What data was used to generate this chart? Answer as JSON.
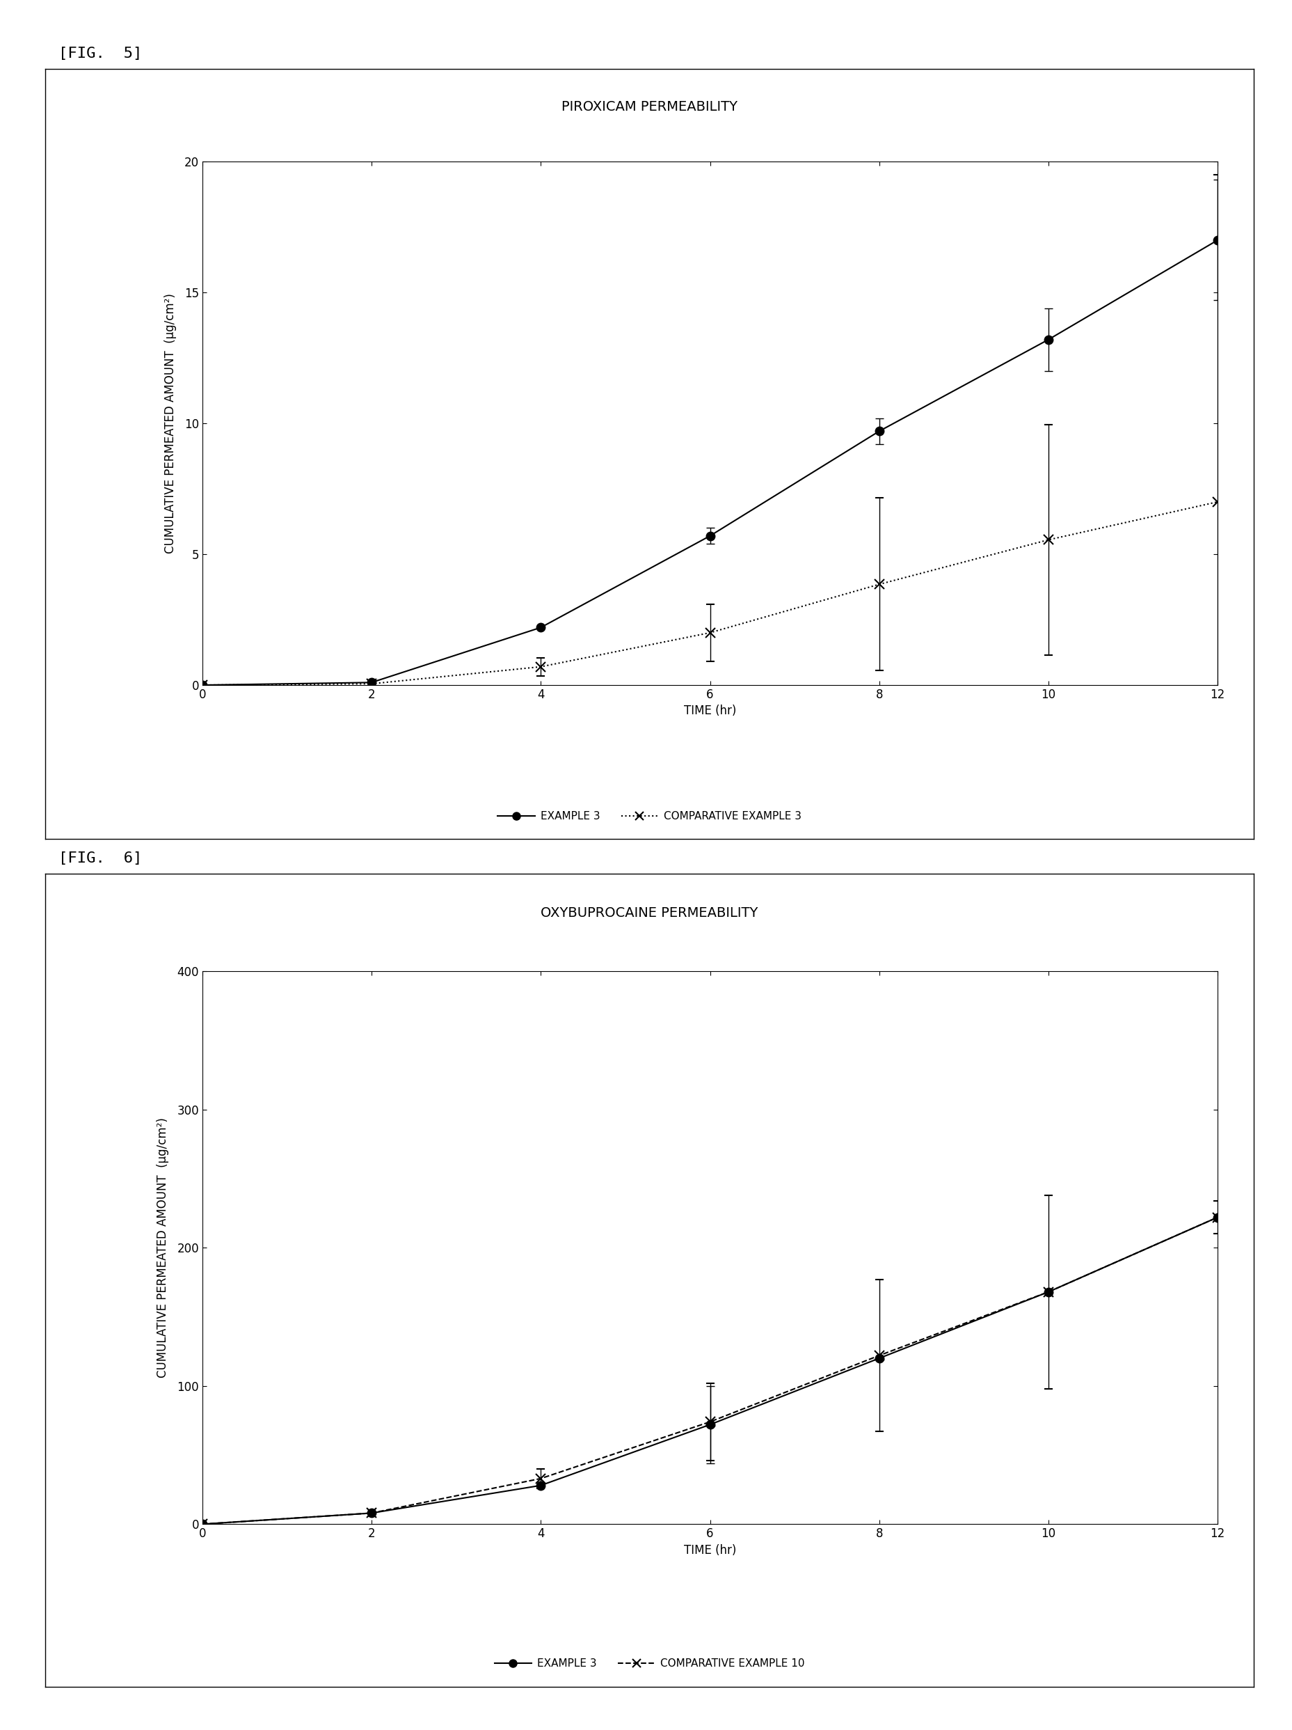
{
  "fig5": {
    "title": "PIROXICAM PERMEABILITY",
    "xlabel": "TIME (hr)",
    "ylabel": "CUMULATIVE PERMEATED AMOUNT  (μg/cm²)",
    "xlim": [
      0,
      12
    ],
    "ylim": [
      0,
      20
    ],
    "xticks": [
      0,
      2,
      4,
      6,
      8,
      10,
      12
    ],
    "yticks": [
      0,
      5,
      10,
      15,
      20
    ],
    "example3": {
      "x": [
        0,
        2,
        4,
        6,
        8,
        10,
        12
      ],
      "y": [
        0,
        0.1,
        2.2,
        5.7,
        9.7,
        13.2,
        17.0
      ],
      "yerr": [
        0,
        0,
        0,
        0.3,
        0.5,
        1.2,
        2.3
      ],
      "label": "EXAMPLE 3",
      "color": "#000000",
      "linestyle": "solid",
      "marker": "o",
      "markersize": 9
    },
    "comp_example3": {
      "x": [
        0,
        2,
        4,
        6,
        8,
        10,
        12
      ],
      "y": [
        0,
        0.05,
        0.7,
        2.0,
        3.85,
        5.55,
        7.0
      ],
      "yerr": [
        0,
        0,
        0.35,
        1.1,
        3.3,
        4.4,
        12.5
      ],
      "label": "COMPARATIVE EXAMPLE 3",
      "color": "#000000",
      "linestyle": "dotted",
      "marker": "x",
      "markersize": 10
    }
  },
  "fig6": {
    "title": "OXYBUPROCAINE PERMEABILITY",
    "xlabel": "TIME (hr)",
    "ylabel": "CUMULATIVE PERMEATED AMOUNT  (μg/cm²)",
    "xlim": [
      0,
      12
    ],
    "ylim": [
      0,
      400
    ],
    "xticks": [
      0,
      2,
      4,
      6,
      8,
      10,
      12
    ],
    "yticks": [
      0,
      100,
      200,
      300,
      400
    ],
    "example3": {
      "x": [
        0,
        2,
        4,
        6,
        8,
        10,
        12
      ],
      "y": [
        0,
        8,
        28,
        72,
        120,
        168,
        222
      ],
      "yerr": [
        0,
        0,
        0,
        28,
        0,
        0,
        0
      ],
      "label": "EXAMPLE 3",
      "color": "#000000",
      "linestyle": "solid",
      "marker": "o",
      "markersize": 9
    },
    "comp_example10": {
      "x": [
        0,
        2,
        4,
        6,
        8,
        10,
        12
      ],
      "y": [
        0,
        8,
        33,
        74,
        122,
        168,
        222
      ],
      "yerr": [
        0,
        0,
        7,
        28,
        55,
        70,
        12
      ],
      "label": "COMPARATIVE EXAMPLE 10",
      "color": "#000000",
      "linestyle": "dashed",
      "marker": "x",
      "markersize": 10
    }
  },
  "fig5_label": "[FIG.  5]",
  "fig6_label": "[FIG.  6]",
  "bg_color": "#ffffff",
  "text_color": "#000000",
  "title_fontsize": 14,
  "label_fontsize": 12,
  "tick_fontsize": 12,
  "legend_fontsize": 11,
  "figlabel_fontsize": 16
}
